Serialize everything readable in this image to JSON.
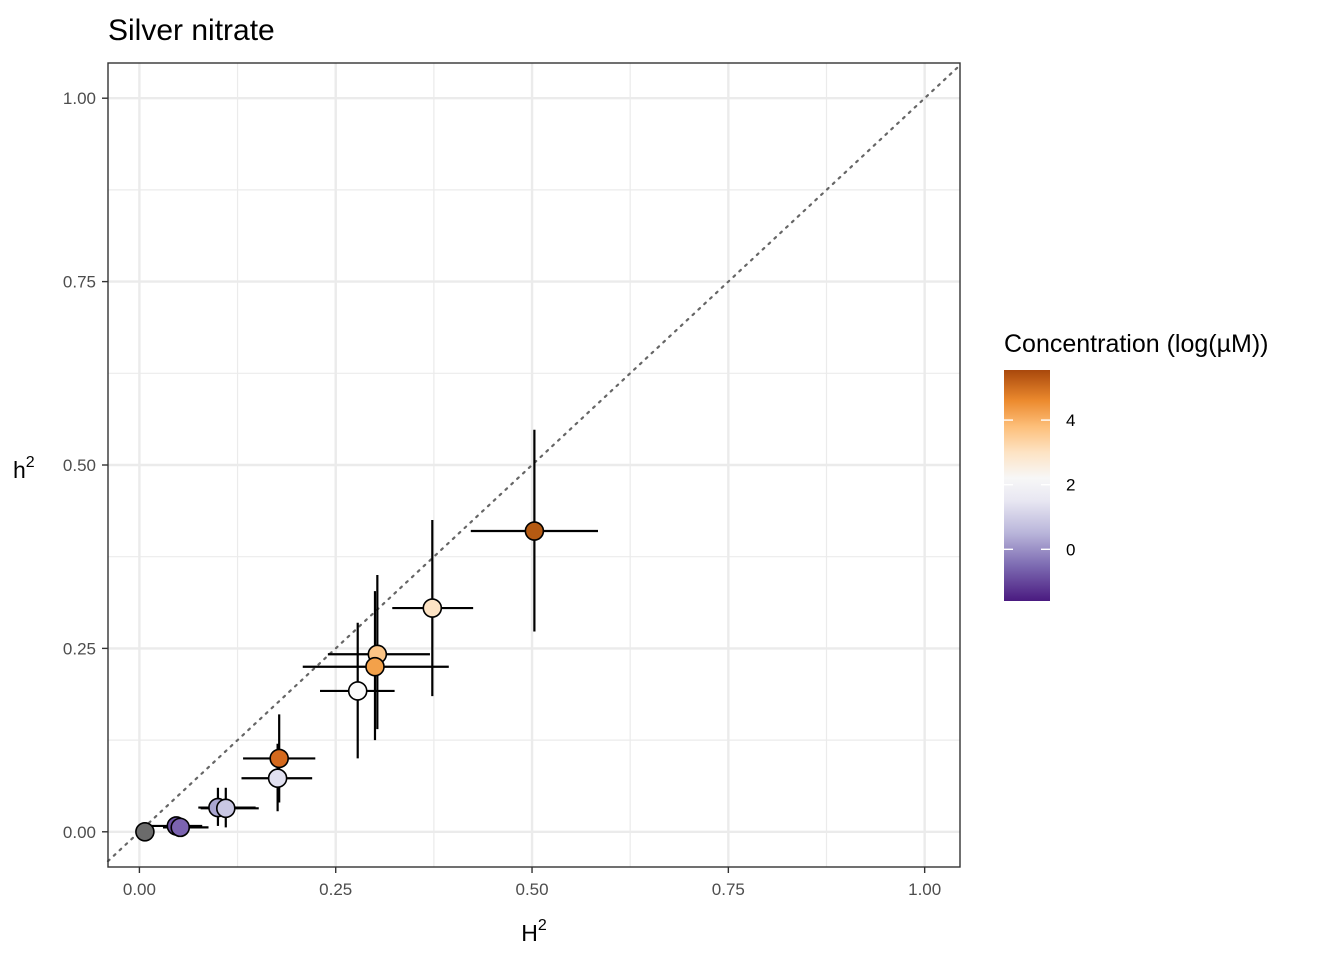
{
  "chart_data": {
    "type": "scatter",
    "title": "Silver nitrate",
    "xlabel": {
      "base": "H",
      "sup": "2"
    },
    "ylabel": {
      "base": "h",
      "sup": "2"
    },
    "xlim": [
      -0.04,
      1.045
    ],
    "ylim": [
      -0.048,
      1.048
    ],
    "x_ticks": [
      {
        "value": 0.0,
        "label": "0.00"
      },
      {
        "value": 0.25,
        "label": "0.25"
      },
      {
        "value": 0.5,
        "label": "0.50"
      },
      {
        "value": 0.75,
        "label": "0.75"
      },
      {
        "value": 1.0,
        "label": "1.00"
      }
    ],
    "y_ticks": [
      {
        "value": 0.0,
        "label": "0.00"
      },
      {
        "value": 0.25,
        "label": "0.25"
      },
      {
        "value": 0.5,
        "label": "0.50"
      },
      {
        "value": 0.75,
        "label": "0.75"
      },
      {
        "value": 1.0,
        "label": "1.00"
      }
    ],
    "minor_breaks": [
      0.125,
      0.375,
      0.625,
      0.875
    ],
    "grid": true,
    "reference_line": {
      "slope": 1,
      "intercept": 0,
      "style": "dotted"
    },
    "points": [
      {
        "x": 0.007,
        "y": 0.0,
        "x_err": [
          0.0,
          0.015
        ],
        "y_err": [
          0.0,
          0.004
        ],
        "color": "#6b6b6b"
      },
      {
        "x": 0.047,
        "y": 0.008,
        "x_err": [
          0.013,
          0.08
        ],
        "y_err": [
          0.004,
          0.012
        ],
        "color": "#6c51a3"
      },
      {
        "x": 0.052,
        "y": 0.006,
        "x_err": [
          0.03,
          0.088
        ],
        "y_err": [
          0.002,
          0.01
        ],
        "color": "#7b63b0"
      },
      {
        "x": 0.1,
        "y": 0.033,
        "x_err": [
          0.075,
          0.148
        ],
        "y_err": [
          0.008,
          0.06
        ],
        "color": "#a9a5d0"
      },
      {
        "x": 0.11,
        "y": 0.032,
        "x_err": [
          0.078,
          0.152
        ],
        "y_err": [
          0.006,
          0.06
        ],
        "color": "#c9c7e3"
      },
      {
        "x": 0.176,
        "y": 0.073,
        "x_err": [
          0.13,
          0.22
        ],
        "y_err": [
          0.028,
          0.12
        ],
        "color": "#e1e0f0"
      },
      {
        "x": 0.178,
        "y": 0.1,
        "x_err": [
          0.132,
          0.224
        ],
        "y_err": [
          0.04,
          0.16
        ],
        "color": "#d4691d"
      },
      {
        "x": 0.278,
        "y": 0.192,
        "x_err": [
          0.23,
          0.325
        ],
        "y_err": [
          0.1,
          0.285
        ],
        "color": "#fbfbfb"
      },
      {
        "x": 0.303,
        "y": 0.242,
        "x_err": [
          0.24,
          0.37
        ],
        "y_err": [
          0.14,
          0.35
        ],
        "color": "#fcc586"
      },
      {
        "x": 0.3,
        "y": 0.225,
        "x_err": [
          0.208,
          0.394
        ],
        "y_err": [
          0.125,
          0.328
        ],
        "color": "#f3a14a"
      },
      {
        "x": 0.373,
        "y": 0.305,
        "x_err": [
          0.322,
          0.425
        ],
        "y_err": [
          0.185,
          0.425
        ],
        "color": "#fde3c4"
      },
      {
        "x": 0.503,
        "y": 0.41,
        "x_err": [
          0.422,
          0.584
        ],
        "y_err": [
          0.273,
          0.548
        ],
        "color": "#b55a12"
      }
    ],
    "legend": {
      "title": "Concentration (log(µM))",
      "position": "right",
      "range": [
        -1.6,
        5.55
      ],
      "ticks": [
        {
          "value": 0,
          "label": "0"
        },
        {
          "value": 2,
          "label": "2"
        },
        {
          "value": 4,
          "label": "4"
        }
      ],
      "stops": [
        {
          "value": -1.6,
          "color": "#4a1a80"
        },
        {
          "value": -0.5,
          "color": "#7d6bb2"
        },
        {
          "value": 0.5,
          "color": "#b9b5da"
        },
        {
          "value": 1.5,
          "color": "#e8e7f2"
        },
        {
          "value": 2.2,
          "color": "#f7f7f7"
        },
        {
          "value": 3.0,
          "color": "#fde3c4"
        },
        {
          "value": 3.8,
          "color": "#fdbf7a"
        },
        {
          "value": 4.6,
          "color": "#ec8a2e"
        },
        {
          "value": 5.55,
          "color": "#a9480c"
        }
      ]
    }
  }
}
